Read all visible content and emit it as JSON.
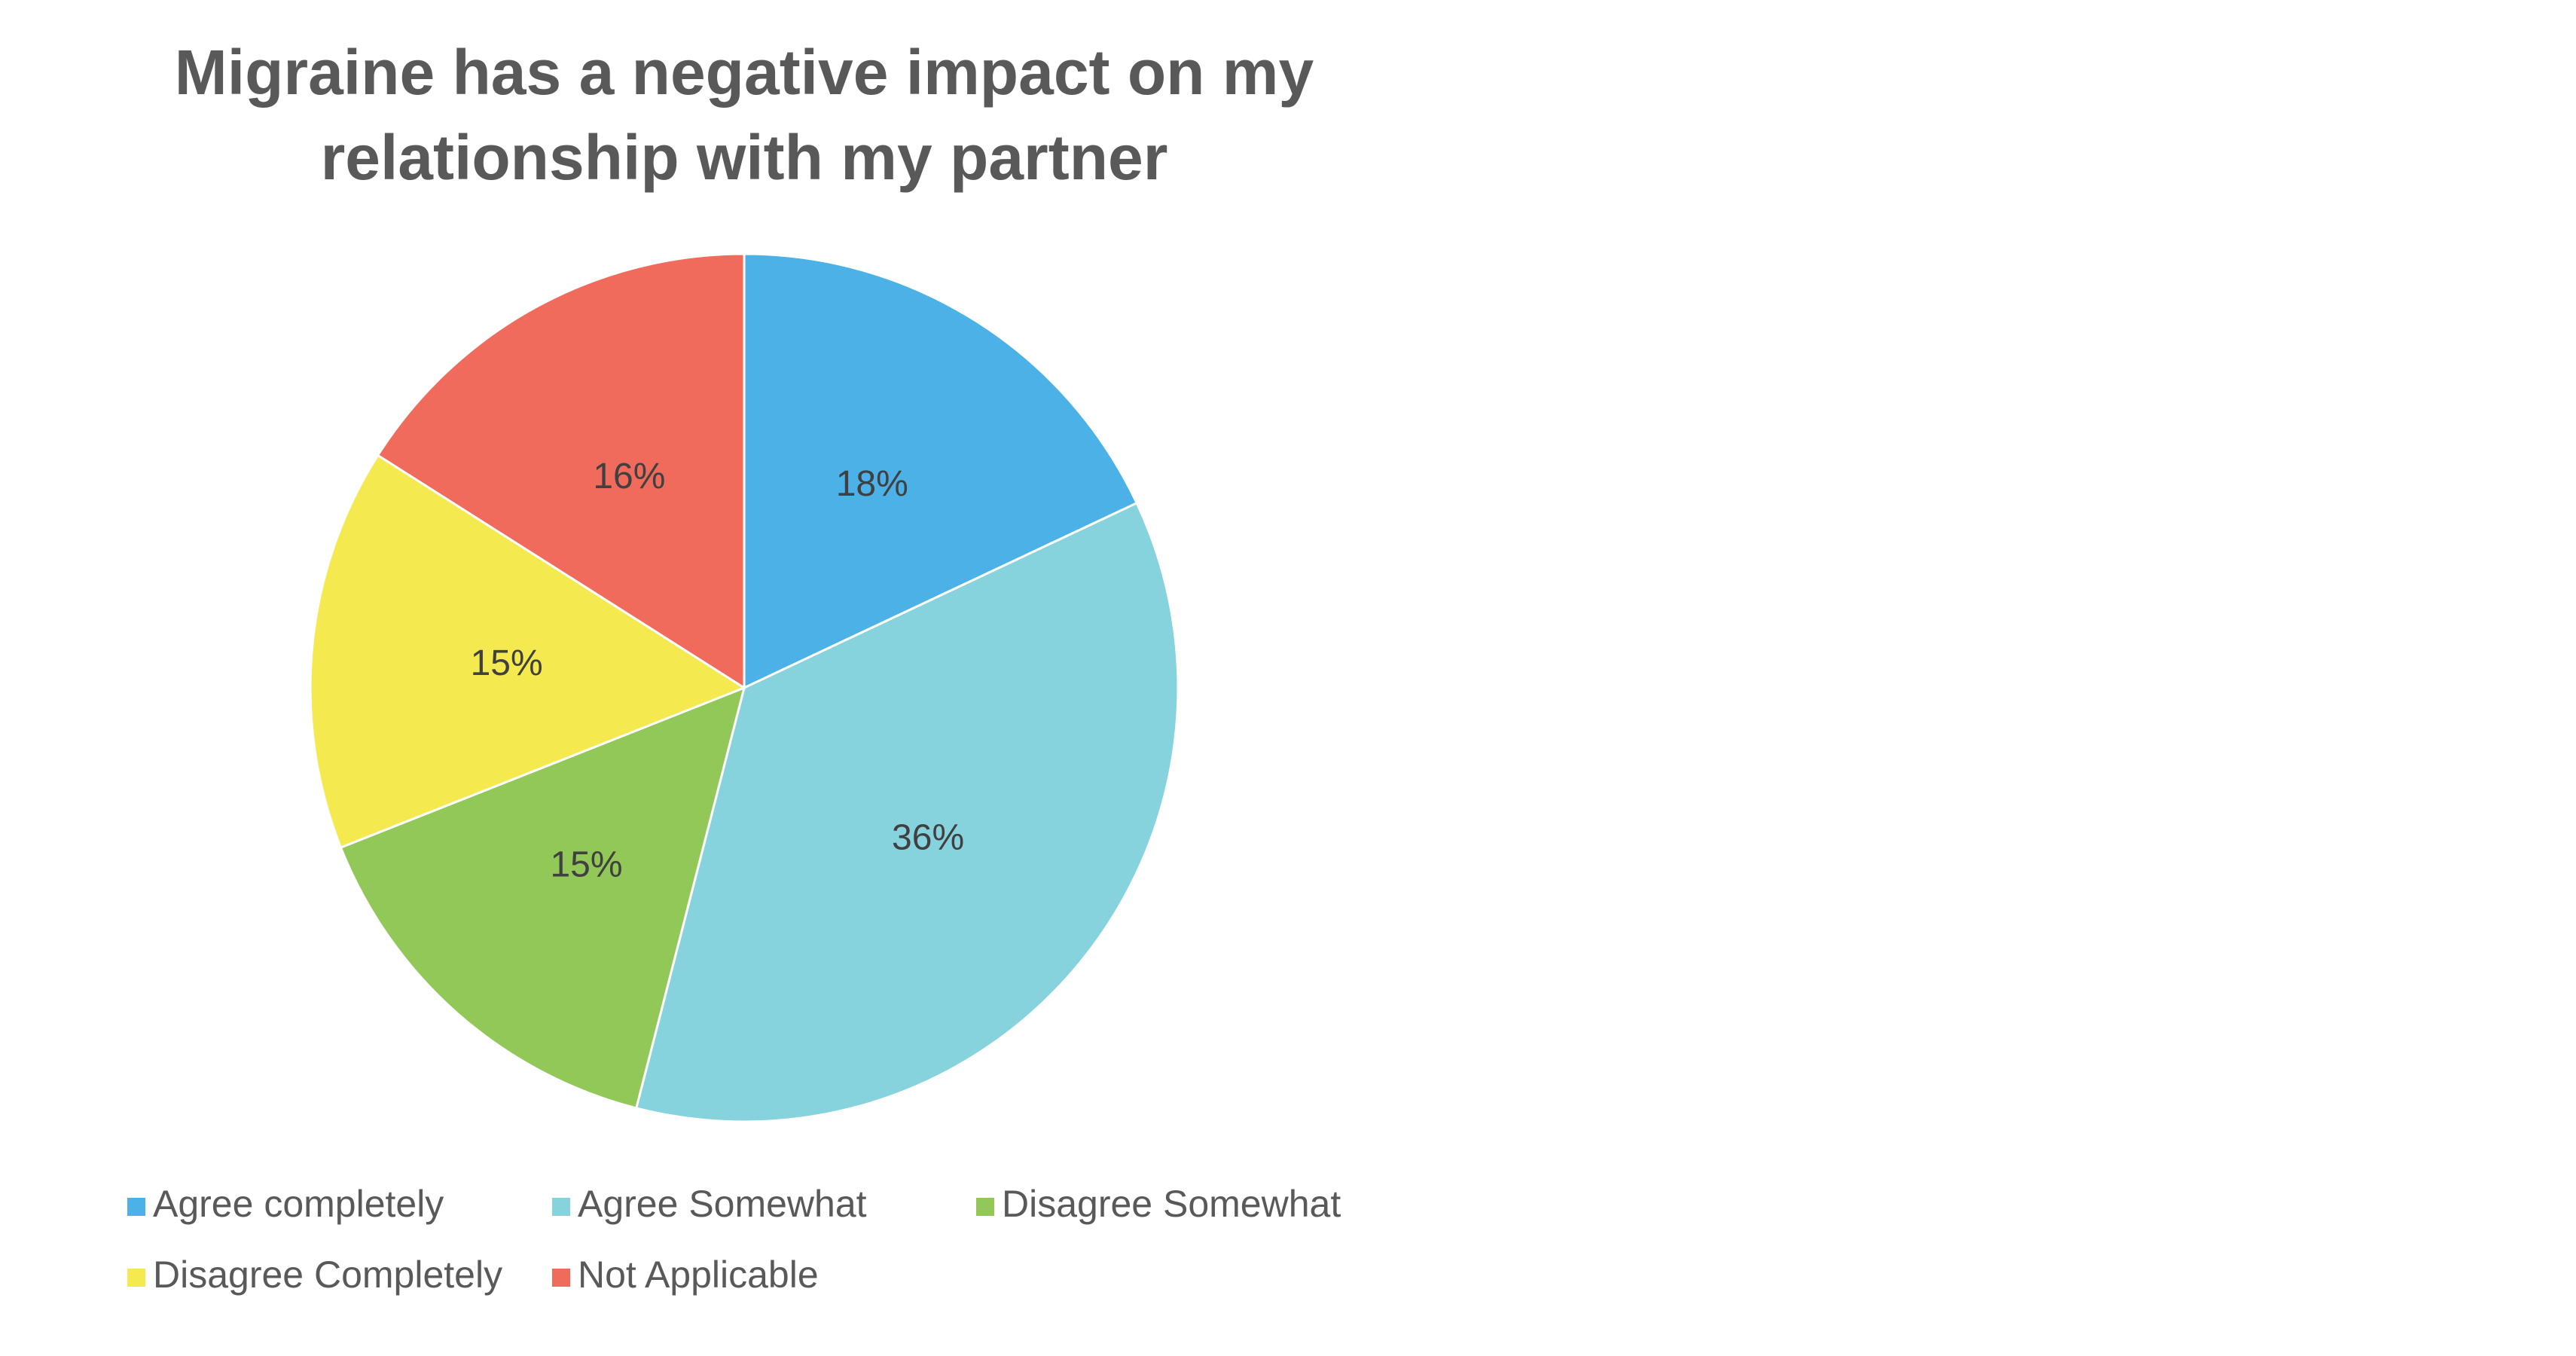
{
  "chart_data": {
    "type": "pie",
    "title": [
      "Migraine has a negative impact on my",
      "relationship with my partner"
    ],
    "categories": [
      "Agree completely",
      "Agree Somewhat",
      "Disagree Somewhat",
      "Disagree Completely",
      "Not Applicable"
    ],
    "values": [
      18,
      36,
      15,
      15,
      16
    ],
    "value_labels": [
      "18%",
      "36%",
      "15%",
      "15%",
      "16%"
    ],
    "colors": [
      "#4cb1e6",
      "#86d3dd",
      "#92c858",
      "#f4ea50",
      "#f06b5c"
    ]
  }
}
